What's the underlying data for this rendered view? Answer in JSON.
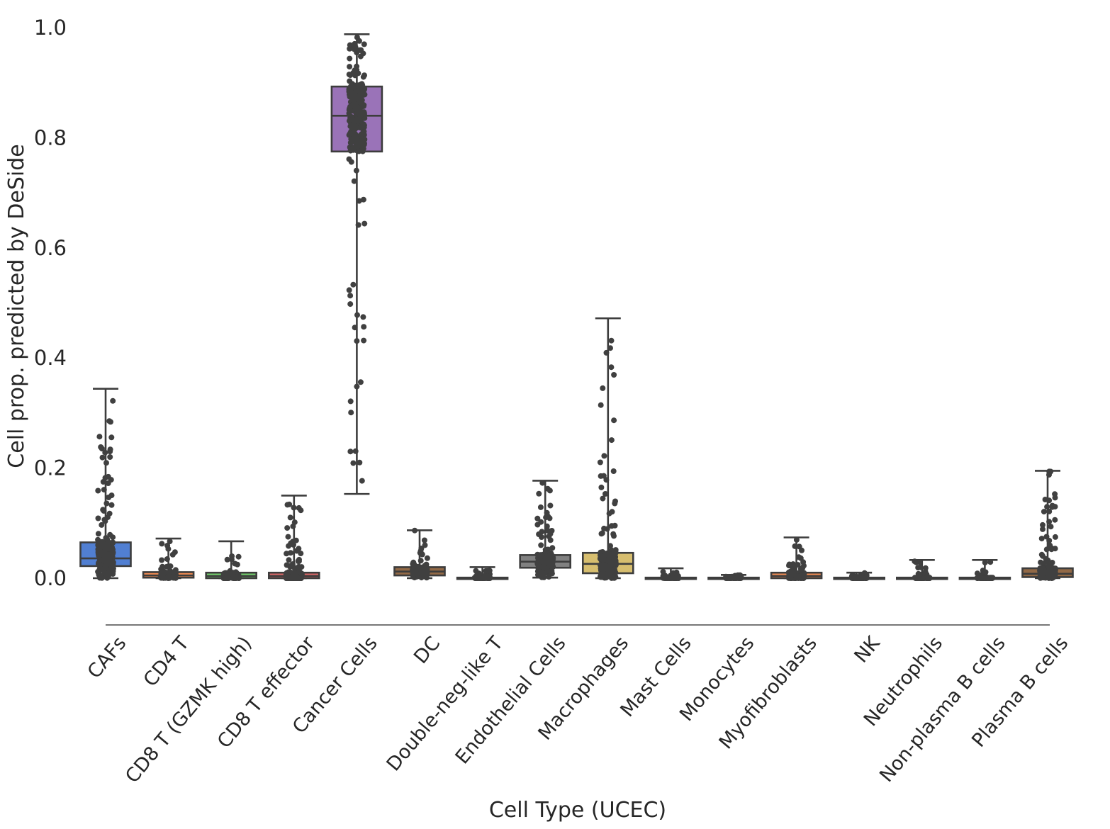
{
  "chart_data": {
    "type": "box",
    "xlabel": "Cell Type (UCEC)",
    "ylabel": "Cell prop. predicted by DeSide",
    "ylim": [
      0,
      1.0
    ],
    "yticks": [
      "0.0",
      "0.2",
      "0.4",
      "0.6",
      "0.8",
      "1.0"
    ],
    "grid": false,
    "legend": "none",
    "categories": [
      {
        "label": "CAFs",
        "color": "#4878d0",
        "whisker_low": 0.0,
        "q1": 0.022,
        "median": 0.036,
        "q3": 0.065,
        "whisker_high": 0.344
      },
      {
        "label": "CD4 T",
        "color": "#ee854a",
        "whisker_low": 0.0,
        "q1": 0.001,
        "median": 0.005,
        "q3": 0.011,
        "whisker_high": 0.072
      },
      {
        "label": "CD8 T (GZMK high)",
        "color": "#6acc64",
        "whisker_low": 0.0,
        "q1": 0.0,
        "median": 0.004,
        "q3": 0.01,
        "whisker_high": 0.067
      },
      {
        "label": "CD8 T effector",
        "color": "#d65f5f",
        "whisker_low": 0.0,
        "q1": 0.0,
        "median": 0.004,
        "q3": 0.01,
        "whisker_high": 0.15
      },
      {
        "label": "Cancer Cells",
        "color": "#956cb4",
        "whisker_low": 0.153,
        "q1": 0.775,
        "median": 0.84,
        "q3": 0.893,
        "whisker_high": 0.988
      },
      {
        "label": "DC",
        "color": "#8c613c",
        "whisker_low": 0.0,
        "q1": 0.005,
        "median": 0.012,
        "q3": 0.02,
        "whisker_high": 0.087
      },
      {
        "label": "Double-neg-like T",
        "color": "#dc7ec0",
        "whisker_low": 0.0,
        "q1": 0.0,
        "median": 0.0,
        "q3": 0.001,
        "whisker_high": 0.02
      },
      {
        "label": "Endothelial Cells",
        "color": "#797979",
        "whisker_low": 0.001,
        "q1": 0.019,
        "median": 0.03,
        "q3": 0.042,
        "whisker_high": 0.177
      },
      {
        "label": "Macrophages",
        "color": "#d5bb67",
        "whisker_low": 0.0,
        "q1": 0.009,
        "median": 0.026,
        "q3": 0.046,
        "whisker_high": 0.472
      },
      {
        "label": "Mast Cells",
        "color": "#82c6e2",
        "whisker_low": 0.0,
        "q1": 0.0,
        "median": 0.0,
        "q3": 0.001,
        "whisker_high": 0.018
      },
      {
        "label": "Monocytes",
        "color": "#4878d0",
        "whisker_low": 0.0,
        "q1": 0.0,
        "median": 0.0,
        "q3": 0.001,
        "whisker_high": 0.006
      },
      {
        "label": "Myofibroblasts",
        "color": "#ee854a",
        "whisker_low": 0.0,
        "q1": 0.0,
        "median": 0.004,
        "q3": 0.01,
        "whisker_high": 0.074
      },
      {
        "label": "NK",
        "color": "#6acc64",
        "whisker_low": 0.0,
        "q1": 0.0,
        "median": 0.0,
        "q3": 0.001,
        "whisker_high": 0.01
      },
      {
        "label": "Neutrophils",
        "color": "#d65f5f",
        "whisker_low": 0.0,
        "q1": 0.0,
        "median": 0.0,
        "q3": 0.001,
        "whisker_high": 0.033
      },
      {
        "label": "Non-plasma B cells",
        "color": "#956cb4",
        "whisker_low": 0.0,
        "q1": 0.0,
        "median": 0.0,
        "q3": 0.001,
        "whisker_high": 0.033
      },
      {
        "label": "Plasma B cells",
        "color": "#8c613c",
        "whisker_low": 0.0,
        "q1": 0.002,
        "median": 0.008,
        "q3": 0.018,
        "whisker_high": 0.195
      }
    ],
    "strip_point_color": "#404040"
  }
}
